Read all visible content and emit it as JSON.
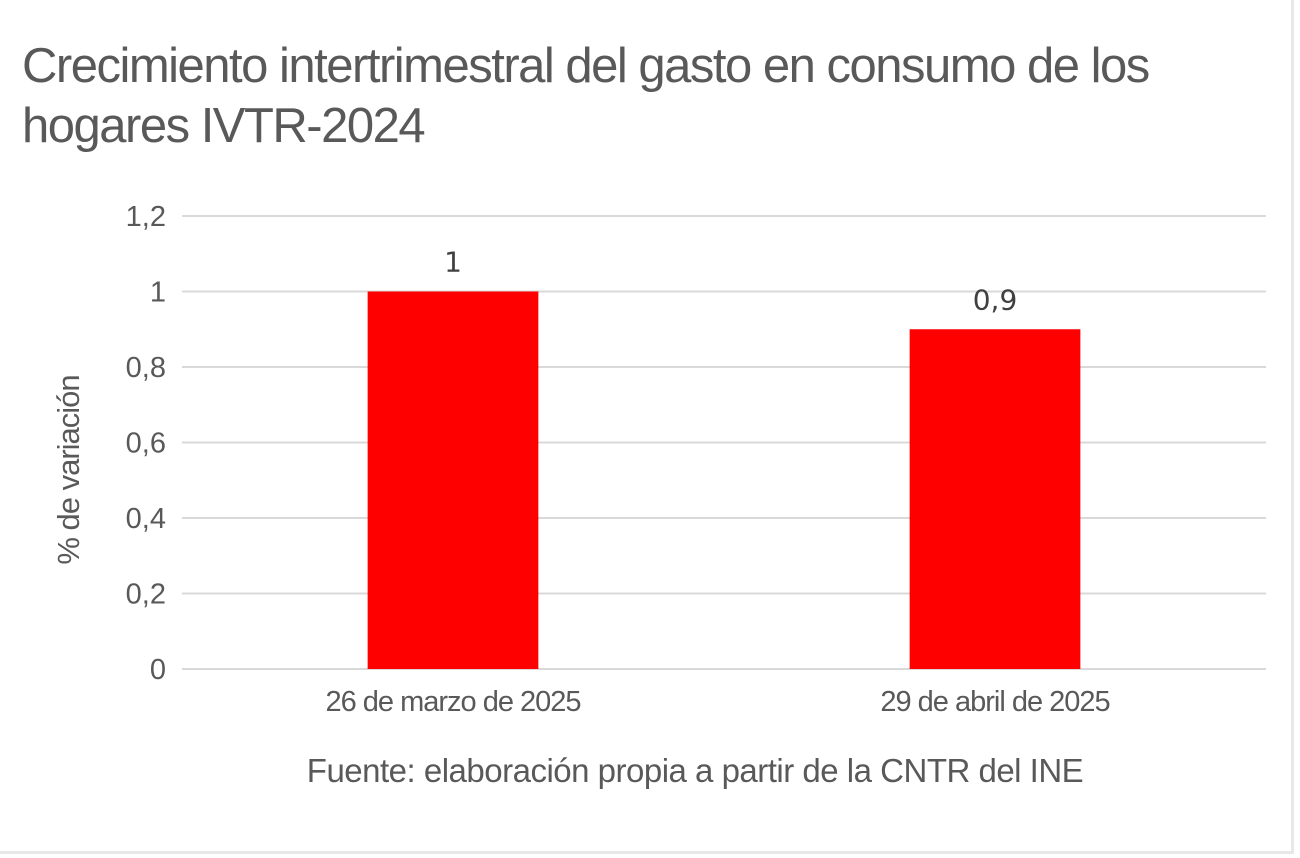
{
  "chart_data": {
    "type": "bar",
    "title": "Crecimiento intertrimestral del gasto en consumo de los hogares IVTR-2024",
    "ylabel": "% de variación",
    "xlabel": "",
    "categories": [
      "26 de marzo de 2025",
      "29 de abril de 2025"
    ],
    "values": [
      1,
      0.9
    ],
    "data_labels": [
      "1",
      "0,9"
    ],
    "ylim": [
      0,
      1.2
    ],
    "yticks": [
      0,
      0.2,
      0.4,
      0.6,
      0.8,
      1,
      1.2
    ],
    "ytick_labels": [
      "0",
      "0,2",
      "0,4",
      "0,6",
      "0,8",
      "1",
      "1,2"
    ],
    "grid": true,
    "legend": "none",
    "bar_color": "#ff0000",
    "grid_color": "#d9d9d9",
    "source": "Fuente: elaboración propia a partir de la CNTR del INE"
  }
}
